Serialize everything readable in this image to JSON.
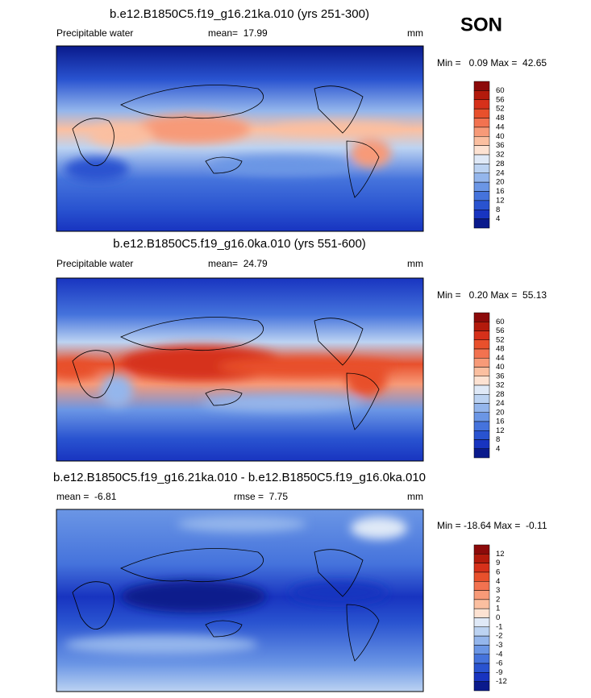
{
  "season": "SON",
  "panels": [
    {
      "title": "b.e12.B1850C5.f19_g16.21ka.010 (yrs 251-300)",
      "left": "Precipitable water",
      "center": "mean=  17.99",
      "right": "mm",
      "minmax": "Min =   0.09 Max =  42.65",
      "colorbar": {
        "labels": [
          "60",
          "56",
          "52",
          "48",
          "44",
          "40",
          "36",
          "32",
          "28",
          "24",
          "20",
          "16",
          "12",
          "8",
          "4"
        ]
      }
    },
    {
      "title": "b.e12.B1850C5.f19_g16.0ka.010 (yrs 551-600)",
      "left": "Precipitable water",
      "center": "mean=  24.79",
      "right": "mm",
      "minmax": "Min =   0.20 Max =  55.13",
      "colorbar": {
        "labels": [
          "60",
          "56",
          "52",
          "48",
          "44",
          "40",
          "36",
          "32",
          "28",
          "24",
          "20",
          "16",
          "12",
          "8",
          "4"
        ]
      }
    },
    {
      "title": "b.e12.B1850C5.f19_g16.21ka.010 - b.e12.B1850C5.f19_g16.0ka.010",
      "left": "mean =  -6.81",
      "center": "rmse =  7.75",
      "right": "mm",
      "minmax": "Min = -18.64 Max =  -0.11",
      "colorbar": {
        "labels": [
          "12",
          "9",
          "6",
          "4",
          "3",
          "2",
          "1",
          "0",
          "-1",
          "-2",
          "-3",
          "-4",
          "-6",
          "-9",
          "-12"
        ]
      }
    }
  ],
  "colors": [
    "#8c0a0a",
    "#b31a0c",
    "#d6301a",
    "#e8502c",
    "#f27250",
    "#f79a78",
    "#fbbfa0",
    "#fde2d2",
    "#dfe9f7",
    "#bcd3f2",
    "#94b6ec",
    "#6b96e5",
    "#4573dc",
    "#2953d0",
    "#1834c0",
    "#0a1a8c"
  ]
}
